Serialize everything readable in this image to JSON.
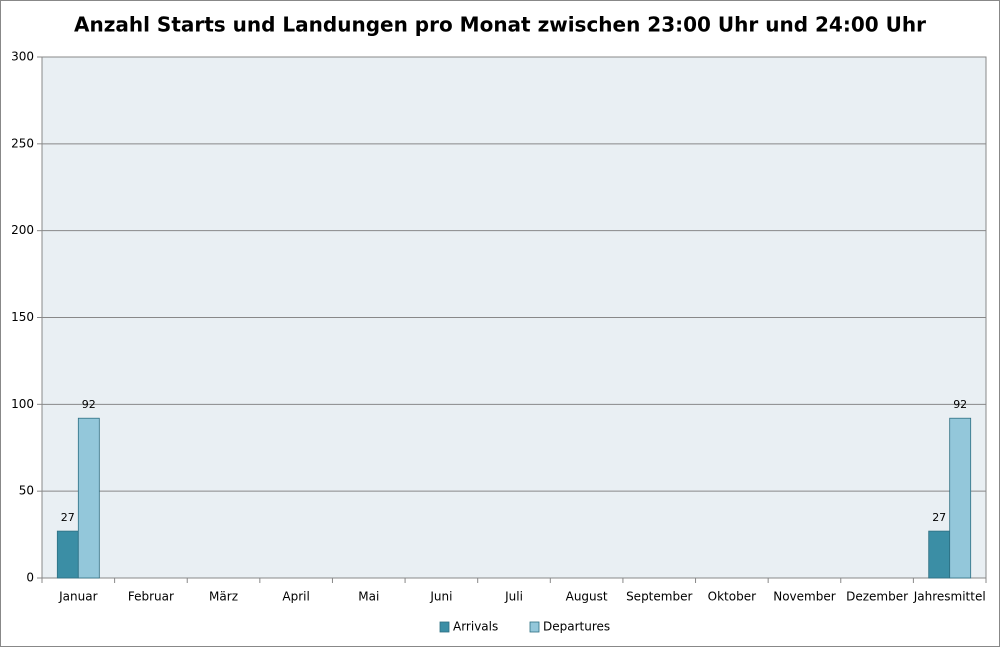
{
  "chart_data": {
    "type": "bar",
    "title": "Anzahl Starts und Landungen pro Monat zwischen 23:00 Uhr und 24:00 Uhr",
    "categories": [
      "Januar",
      "Februar",
      "März",
      "April",
      "Mai",
      "Juni",
      "Juli",
      "August",
      "September",
      "Oktober",
      "November",
      "Dezember",
      "Jahresmittel"
    ],
    "series": [
      {
        "name": "Arrivals",
        "color": "#3b8ea5",
        "values": [
          27,
          null,
          null,
          null,
          null,
          null,
          null,
          null,
          null,
          null,
          null,
          null,
          27
        ]
      },
      {
        "name": "Departures",
        "color": "#93c7da",
        "values": [
          92,
          null,
          null,
          null,
          null,
          null,
          null,
          null,
          null,
          null,
          null,
          null,
          92
        ]
      }
    ],
    "ylim": [
      0,
      300
    ],
    "yticks": [
      0,
      50,
      100,
      150,
      200,
      250,
      300
    ],
    "grid": true,
    "legend": "bottom"
  }
}
